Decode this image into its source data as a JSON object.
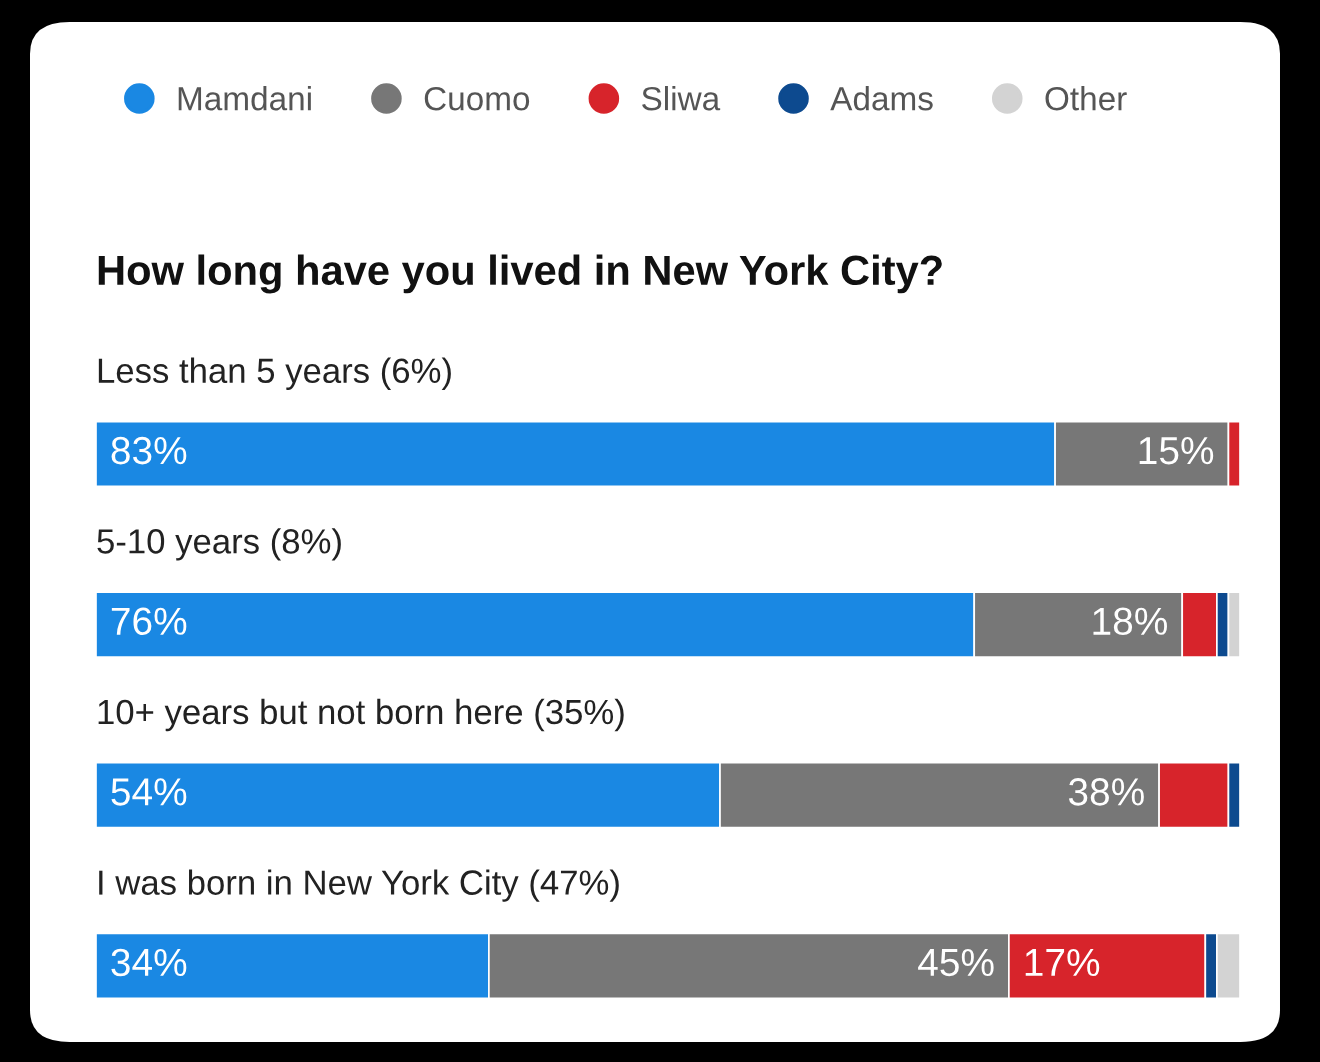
{
  "chart_data": {
    "type": "bar",
    "orientation": "horizontal",
    "stacked": true,
    "title": "How long have you lived in New York City?",
    "categories": [
      "Less than 5 years (6%)",
      "5-10 years (8%)",
      "10+ years but not born here (35%)",
      "I was born in New York City (47%)"
    ],
    "series": [
      {
        "name": "Mamdani",
        "color": "#1a88e3",
        "values": [
          83,
          76,
          54,
          34
        ],
        "value_labels": [
          "83%",
          "76%",
          "54%",
          "34%"
        ]
      },
      {
        "name": "Cuomo",
        "color": "#777777",
        "values": [
          15,
          18,
          38,
          45
        ],
        "value_labels": [
          "15%",
          "18%",
          "38%",
          "45%"
        ]
      },
      {
        "name": "Sliwa",
        "color": "#d7242b",
        "values": [
          1,
          3,
          6,
          17
        ],
        "value_labels": [
          null,
          null,
          null,
          "17%"
        ]
      },
      {
        "name": "Adams",
        "color": "#0d4a8f",
        "values": [
          null,
          1,
          1,
          1
        ]
      },
      {
        "name": "Other",
        "color": "#d3d3d3",
        "values": [
          null,
          1,
          null,
          2
        ]
      }
    ],
    "legend": "top left"
  }
}
